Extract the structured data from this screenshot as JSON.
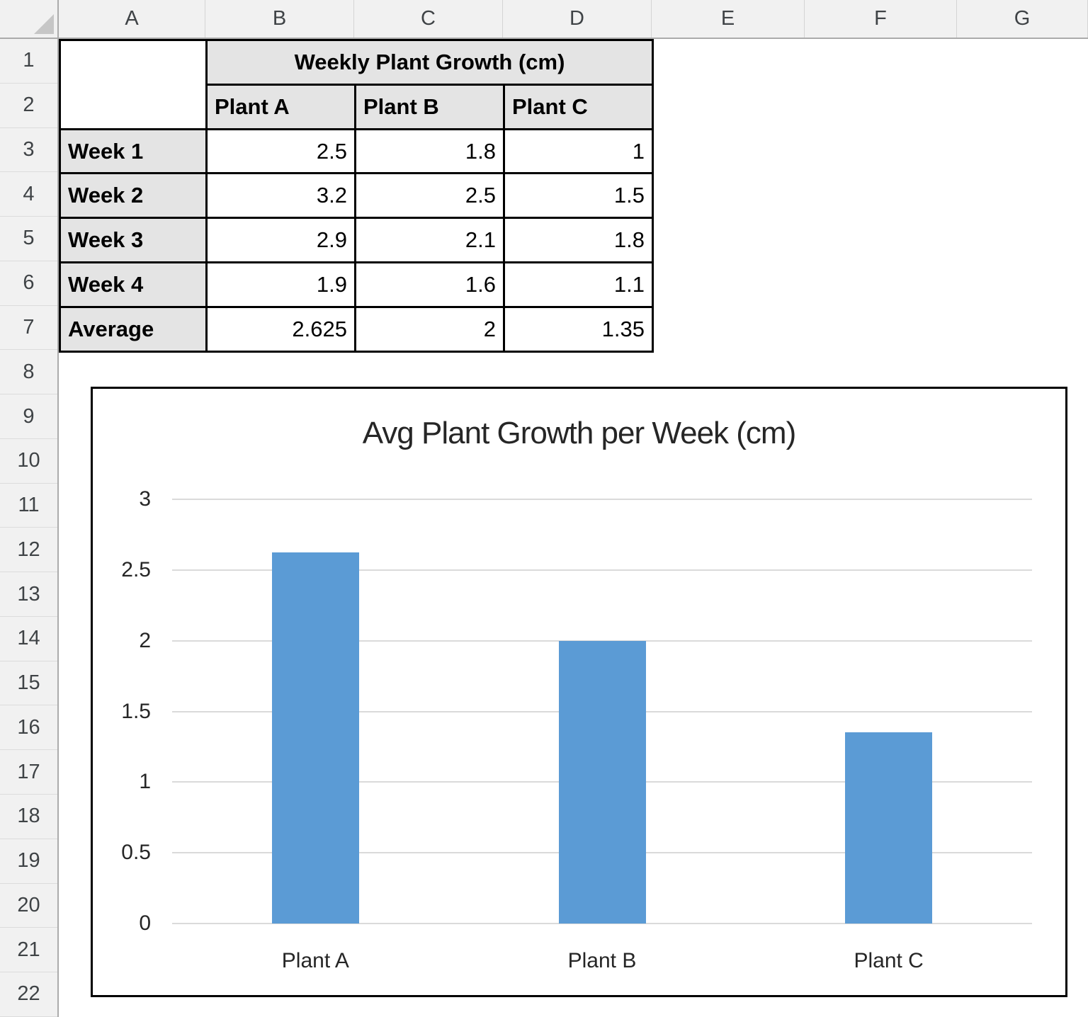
{
  "spreadsheet": {
    "app": "Excel worksheet",
    "column_headers": [
      "A",
      "B",
      "C",
      "D",
      "E",
      "F",
      "G"
    ],
    "row_headers": [
      "1",
      "2",
      "3",
      "4",
      "5",
      "6",
      "7",
      "8",
      "9",
      "10",
      "11",
      "12",
      "13",
      "14",
      "15",
      "16",
      "17",
      "18",
      "19",
      "20",
      "21",
      "22"
    ],
    "table": {
      "title": "Weekly Plant Growth (cm)",
      "column_labels": [
        "Plant A",
        "Plant B",
        "Plant C"
      ],
      "rows": [
        {
          "label": "Week 1",
          "values": [
            "2.5",
            "1.8",
            "1"
          ]
        },
        {
          "label": "Week 2",
          "values": [
            "3.2",
            "2.5",
            "1.5"
          ]
        },
        {
          "label": "Week 3",
          "values": [
            "2.9",
            "2.1",
            "1.8"
          ]
        },
        {
          "label": "Week 4",
          "values": [
            "1.9",
            "1.6",
            "1.1"
          ]
        },
        {
          "label": "Average",
          "values": [
            "2.625",
            "2",
            "1.35"
          ]
        }
      ]
    },
    "ui_colors": {
      "header_strip_fill": "#F1F1F1",
      "header_strip_border": "#ABABAB",
      "table_header_fill": "#E4E4E4",
      "table_border": "#000000"
    }
  },
  "chart_data": {
    "type": "bar",
    "title": "Avg Plant Growth per Week (cm)",
    "categories": [
      "Plant A",
      "Plant B",
      "Plant C"
    ],
    "values": [
      2.625,
      2,
      1.35
    ],
    "xlabel": "",
    "ylabel": "",
    "ylim": [
      0,
      3
    ],
    "yticks": [
      0,
      0.5,
      1,
      1.5,
      2,
      2.5,
      3
    ],
    "ytick_labels": [
      "0",
      "0.5",
      "1",
      "1.5",
      "2",
      "2.5",
      "3"
    ],
    "grid": true,
    "legend_position": "none",
    "bar_color": "#5B9BD5",
    "gridline_color": "#DADADA"
  }
}
